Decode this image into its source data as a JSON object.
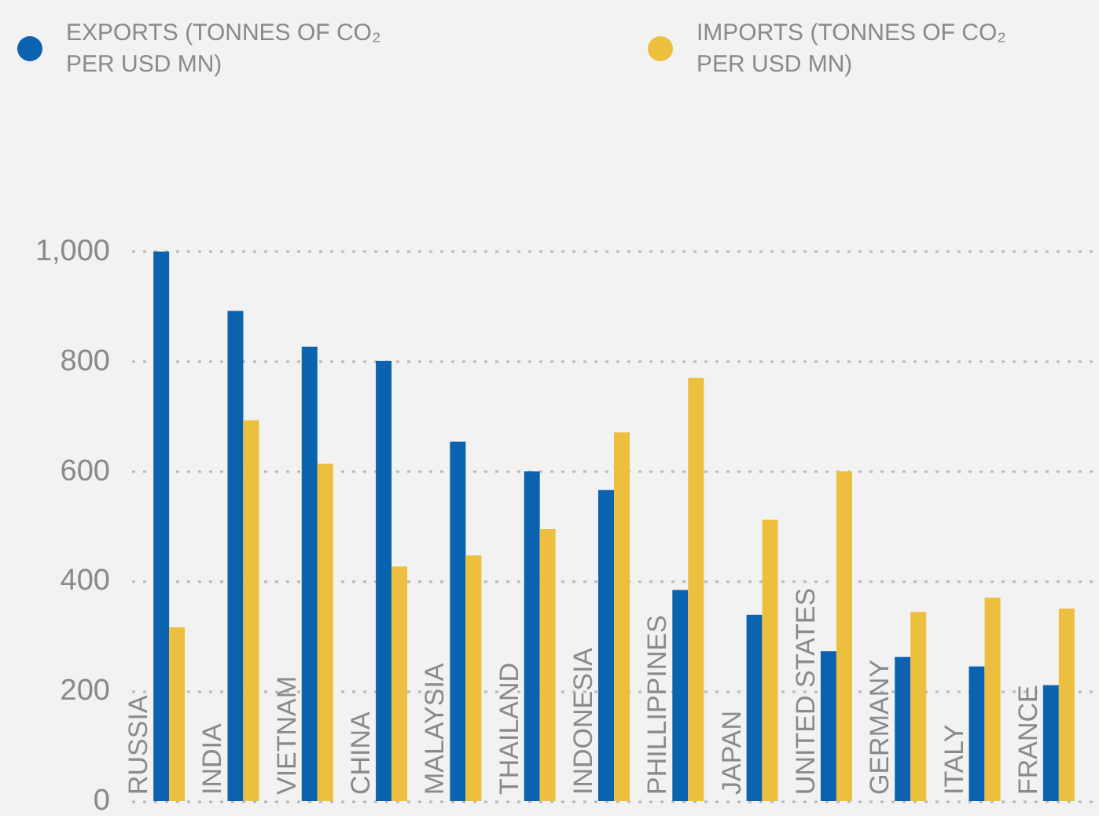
{
  "chart_data": {
    "type": "bar",
    "categories": [
      "RUSSIA",
      "INDIA",
      "VIETNAM",
      "CHINA",
      "MALAYSIA",
      "THAILAND",
      "INDONESIA",
      "PHILLIPPINES",
      "JAPAN",
      "UNITED STATES",
      "GERMANY",
      "ITALY",
      "FRANCE"
    ],
    "series": [
      {
        "name": "EXPORTS (TONNES OF CO₂ PER USD MN)",
        "color": "#0b62ae",
        "values": [
          1000,
          892,
          827,
          801,
          654,
          600,
          566,
          384,
          339,
          273,
          262,
          245,
          211
        ]
      },
      {
        "name": "IMPORTS (TONNES OF CO₂ PER USD MN)",
        "color": "#edbf3f",
        "values": [
          316,
          693,
          614,
          427,
          447,
          495,
          671,
          770,
          512,
          600,
          344,
          370,
          350
        ]
      }
    ],
    "ylim": [
      0,
      1000
    ],
    "yticks": [
      0,
      200,
      400,
      600,
      800,
      {
        "value": 1000,
        "label": "1,000"
      }
    ],
    "grid": "y",
    "legend": "top left"
  }
}
